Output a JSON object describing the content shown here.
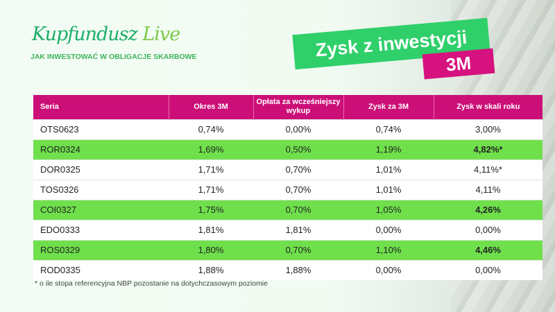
{
  "logo": {
    "brand": "Kupfundusz",
    "live": "Live",
    "tagline": "JAK INWESTOWAĆ W OBLIGACJE SKARBOWE"
  },
  "title": "Zysk z inwestycji",
  "subtitle": "3M",
  "colors": {
    "header": "#cc0f78",
    "highlight": "#6fe04c",
    "banner": "#2fcf6a",
    "subtitle": "#d6127e"
  },
  "table": {
    "headers": [
      "Seria",
      "Okres 3M",
      "Opłata za wcześniejszy wykup",
      "Zysk za 3M",
      "Zysk w skali roku"
    ],
    "rows": [
      {
        "cells": [
          "OTS0623",
          "0,74%",
          "0,00%",
          "0,74%",
          "3,00%"
        ],
        "highlight": false
      },
      {
        "cells": [
          "ROR0324",
          "1,69%",
          "0,50%",
          "1,19%",
          "4,82%*"
        ],
        "highlight": true
      },
      {
        "cells": [
          "DOR0325",
          "1,71%",
          "0,70%",
          "1,01%",
          "4,11%*"
        ],
        "highlight": false
      },
      {
        "cells": [
          "TOS0326",
          "1,71%",
          "0,70%",
          "1,01%",
          "4,11%"
        ],
        "highlight": false
      },
      {
        "cells": [
          "COI0327",
          "1,75%",
          "0,70%",
          "1,05%",
          "4,26%"
        ],
        "highlight": true
      },
      {
        "cells": [
          "EDO0333",
          "1,81%",
          "1,81%",
          "0,00%",
          "0,00%"
        ],
        "highlight": false
      },
      {
        "cells": [
          "ROS0329",
          "1,80%",
          "0,70%",
          "1,10%",
          "4,46%"
        ],
        "highlight": true
      },
      {
        "cells": [
          "ROD0335",
          "1,88%",
          "1,88%",
          "0,00%",
          "0,00%"
        ],
        "highlight": false
      }
    ]
  },
  "footnote": "* o ile stopa referencyjna NBP pozostanie na dotychczasowym poziomie"
}
